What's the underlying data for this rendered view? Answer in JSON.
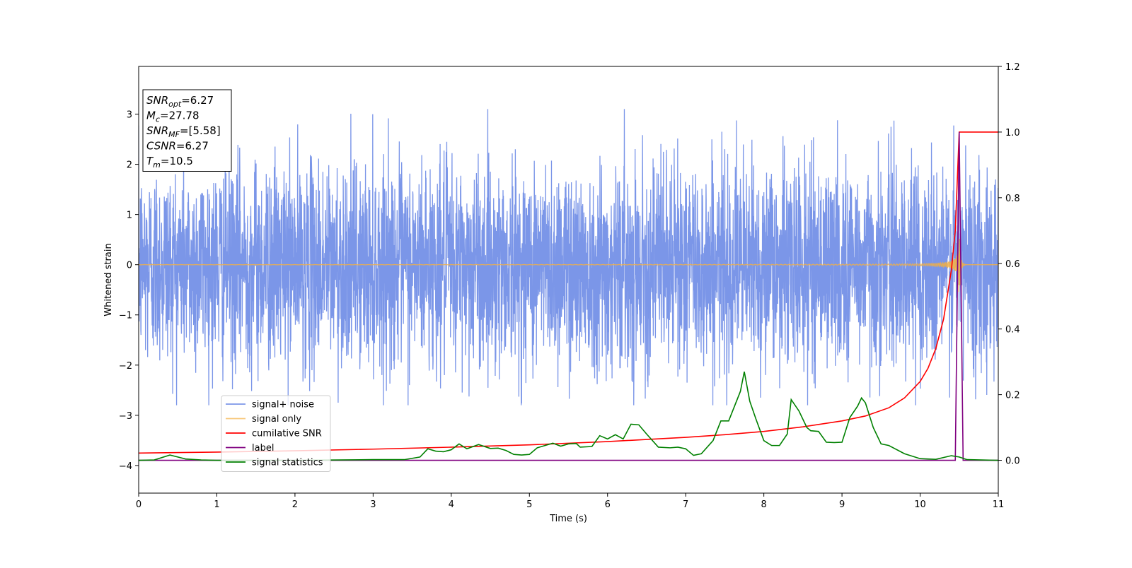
{
  "chart_data": {
    "type": "line",
    "xlabel": "Time (s)",
    "ylabel": "Whitened strain",
    "xlim": [
      0,
      11
    ],
    "ylim": [
      -4.55,
      3.95
    ],
    "y2lim": [
      -0.1,
      1.2
    ],
    "xticks": [
      0,
      1,
      2,
      3,
      4,
      5,
      6,
      7,
      8,
      9,
      10,
      11
    ],
    "yticks": [
      -4,
      -3,
      -2,
      -1,
      0,
      1,
      2,
      3
    ],
    "y2ticks": [
      "0.0",
      "0.2",
      "0.4",
      "0.6",
      "0.8",
      "1.0",
      "1.2"
    ],
    "grid": false,
    "legend_position": "lower-left",
    "info_box": {
      "position": "upper-left",
      "lines": [
        {
          "base": "SNR",
          "sub": "opt",
          "text": "=6.27"
        },
        {
          "base": "M",
          "sub": "c",
          "text": "=27.78"
        },
        {
          "base": "SNR",
          "sub": "MF",
          "text": "=[5.58]"
        },
        {
          "base": "CSNR",
          "sub": "",
          "text": "=6.27"
        },
        {
          "base": "T",
          "sub": "m",
          "text": "=10.5"
        }
      ]
    },
    "series": [
      {
        "name": "signal+ noise",
        "axis": "left",
        "color": "#7b96e8",
        "description_kind": "noise",
        "noise_amplitude": [
          -2.8,
          3.1
        ],
        "noise_std": 1.0
      },
      {
        "name": "signal only",
        "axis": "left",
        "color": "#f5b041",
        "description_kind": "chirp",
        "merger_time": 10.5,
        "peak_amplitude": 0.7
      },
      {
        "name": "cumilative SNR",
        "axis": "right",
        "color": "#ff0000",
        "points": [
          [
            0,
            0.022
          ],
          [
            1,
            0.025
          ],
          [
            2,
            0.029
          ],
          [
            3,
            0.034
          ],
          [
            4,
            0.04
          ],
          [
            5,
            0.047
          ],
          [
            6,
            0.057
          ],
          [
            7,
            0.07
          ],
          [
            7.5,
            0.078
          ],
          [
            8,
            0.088
          ],
          [
            8.5,
            0.102
          ],
          [
            9,
            0.12
          ],
          [
            9.3,
            0.135
          ],
          [
            9.6,
            0.16
          ],
          [
            9.8,
            0.19
          ],
          [
            10,
            0.24
          ],
          [
            10.1,
            0.28
          ],
          [
            10.2,
            0.34
          ],
          [
            10.3,
            0.43
          ],
          [
            10.4,
            0.58
          ],
          [
            10.45,
            0.7
          ],
          [
            10.5,
            1.0
          ],
          [
            11,
            1.0
          ]
        ]
      },
      {
        "name": "label",
        "axis": "right",
        "color": "#800080",
        "points": [
          [
            0,
            0.0
          ],
          [
            10.45,
            0.0
          ],
          [
            10.5,
            1.0
          ],
          [
            10.55,
            0.0
          ],
          [
            11,
            0.0
          ]
        ]
      },
      {
        "name": "signal statistics",
        "axis": "right",
        "color": "#008000",
        "points": [
          [
            0,
            0.0
          ],
          [
            0.2,
            0.001
          ],
          [
            0.4,
            0.016
          ],
          [
            0.6,
            0.004
          ],
          [
            0.8,
            0.001
          ],
          [
            1.0,
            0.0
          ],
          [
            2.0,
            0.0
          ],
          [
            3.0,
            0.002
          ],
          [
            3.4,
            0.002
          ],
          [
            3.6,
            0.01
          ],
          [
            3.7,
            0.035
          ],
          [
            3.8,
            0.028
          ],
          [
            3.9,
            0.026
          ],
          [
            4.0,
            0.032
          ],
          [
            4.1,
            0.05
          ],
          [
            4.2,
            0.035
          ],
          [
            4.35,
            0.048
          ],
          [
            4.5,
            0.036
          ],
          [
            4.6,
            0.037
          ],
          [
            4.7,
            0.03
          ],
          [
            4.8,
            0.018
          ],
          [
            4.9,
            0.016
          ],
          [
            5.0,
            0.018
          ],
          [
            5.1,
            0.038
          ],
          [
            5.3,
            0.052
          ],
          [
            5.4,
            0.043
          ],
          [
            5.5,
            0.05
          ],
          [
            5.6,
            0.051
          ],
          [
            5.65,
            0.04
          ],
          [
            5.8,
            0.042
          ],
          [
            5.9,
            0.075
          ],
          [
            6.0,
            0.065
          ],
          [
            6.1,
            0.078
          ],
          [
            6.2,
            0.065
          ],
          [
            6.3,
            0.11
          ],
          [
            6.4,
            0.108
          ],
          [
            6.5,
            0.08
          ],
          [
            6.65,
            0.04
          ],
          [
            6.8,
            0.038
          ],
          [
            6.9,
            0.04
          ],
          [
            7.0,
            0.035
          ],
          [
            7.1,
            0.015
          ],
          [
            7.2,
            0.02
          ],
          [
            7.35,
            0.06
          ],
          [
            7.45,
            0.12
          ],
          [
            7.55,
            0.12
          ],
          [
            7.7,
            0.21
          ],
          [
            7.75,
            0.27
          ],
          [
            7.82,
            0.18
          ],
          [
            7.9,
            0.125
          ],
          [
            8.0,
            0.06
          ],
          [
            8.1,
            0.045
          ],
          [
            8.2,
            0.045
          ],
          [
            8.3,
            0.08
          ],
          [
            8.35,
            0.185
          ],
          [
            8.45,
            0.15
          ],
          [
            8.55,
            0.1
          ],
          [
            8.6,
            0.09
          ],
          [
            8.7,
            0.088
          ],
          [
            8.8,
            0.055
          ],
          [
            8.9,
            0.054
          ],
          [
            9.0,
            0.055
          ],
          [
            9.1,
            0.13
          ],
          [
            9.2,
            0.165
          ],
          [
            9.25,
            0.19
          ],
          [
            9.3,
            0.175
          ],
          [
            9.4,
            0.1
          ],
          [
            9.5,
            0.05
          ],
          [
            9.6,
            0.045
          ],
          [
            9.8,
            0.02
          ],
          [
            10.0,
            0.005
          ],
          [
            10.2,
            0.003
          ],
          [
            10.4,
            0.014
          ],
          [
            10.5,
            0.01
          ],
          [
            10.6,
            0.002
          ],
          [
            11.0,
            0.0
          ]
        ]
      }
    ]
  }
}
